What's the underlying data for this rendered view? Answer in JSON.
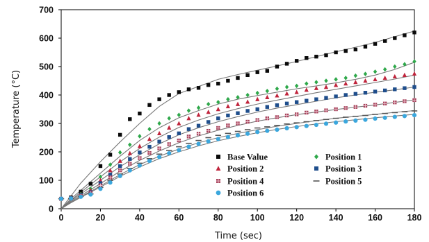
{
  "chart_data": {
    "type": "scatter",
    "title": "",
    "xlabel": "Time (sec)",
    "ylabel": "Temperature (°C)",
    "xlim": [
      0,
      180
    ],
    "ylim": [
      0,
      700
    ],
    "x_ticks": [
      "0",
      "20",
      "40",
      "60",
      "80",
      "100",
      "120",
      "140",
      "160",
      "180"
    ],
    "y_ticks": [
      "0",
      "100",
      "200",
      "300",
      "400",
      "500",
      "600",
      "700"
    ],
    "grid": false,
    "legend": "inside-bottom-center, two columns",
    "series": [
      {
        "name": "Base Value",
        "marker": "square",
        "color": "#0a0a0a",
        "x": [
          0,
          5,
          10,
          15,
          20,
          25,
          30,
          35,
          40,
          45,
          50,
          55,
          60,
          65,
          70,
          75,
          80,
          85,
          90,
          95,
          100,
          105,
          110,
          115,
          120,
          125,
          130,
          135,
          140,
          145,
          150,
          155,
          160,
          165,
          170,
          175,
          180
        ],
        "y": [
          35,
          40,
          60,
          88,
          150,
          190,
          260,
          315,
          335,
          365,
          385,
          400,
          410,
          420,
          425,
          435,
          440,
          450,
          460,
          470,
          480,
          485,
          500,
          510,
          520,
          530,
          535,
          540,
          550,
          555,
          560,
          570,
          580,
          590,
          600,
          610,
          620
        ]
      },
      {
        "name": "Position 1",
        "marker": "diamond",
        "color": "#2ea84a",
        "x": [
          0,
          5,
          10,
          15,
          20,
          25,
          30,
          35,
          40,
          45,
          50,
          55,
          60,
          65,
          70,
          75,
          80,
          85,
          90,
          95,
          100,
          105,
          110,
          115,
          120,
          125,
          130,
          135,
          140,
          145,
          150,
          155,
          160,
          165,
          170,
          175,
          180
        ],
        "y": [
          35,
          38,
          52,
          70,
          112,
          155,
          198,
          225,
          255,
          280,
          300,
          318,
          330,
          345,
          355,
          368,
          375,
          385,
          392,
          400,
          407,
          414,
          422,
          428,
          432,
          440,
          445,
          450,
          455,
          460,
          468,
          474,
          482,
          490,
          500,
          508,
          518
        ]
      },
      {
        "name": "Position 2",
        "marker": "triangle",
        "color": "#c0243c",
        "x": [
          0,
          5,
          10,
          15,
          20,
          25,
          30,
          35,
          40,
          45,
          50,
          55,
          60,
          65,
          70,
          75,
          80,
          85,
          90,
          95,
          100,
          105,
          110,
          115,
          120,
          125,
          130,
          135,
          140,
          145,
          150,
          155,
          160,
          165,
          170,
          175,
          180
        ],
        "y": [
          35,
          38,
          50,
          65,
          100,
          135,
          168,
          195,
          220,
          245,
          265,
          285,
          300,
          318,
          330,
          340,
          350,
          360,
          368,
          376,
          385,
          392,
          398,
          405,
          410,
          418,
          424,
          428,
          435,
          440,
          445,
          450,
          455,
          460,
          465,
          470,
          475
        ]
      },
      {
        "name": "Position 3",
        "marker": "square",
        "color": "#1f4e8c",
        "x": [
          0,
          5,
          10,
          15,
          20,
          25,
          30,
          35,
          40,
          45,
          50,
          55,
          60,
          65,
          70,
          75,
          80,
          85,
          90,
          95,
          100,
          105,
          110,
          115,
          120,
          125,
          130,
          135,
          140,
          145,
          150,
          155,
          160,
          165,
          170,
          175,
          180
        ],
        "y": [
          35,
          37,
          48,
          58,
          90,
          120,
          150,
          175,
          198,
          218,
          236,
          252,
          265,
          280,
          292,
          305,
          318,
          328,
          336,
          344,
          350,
          358,
          364,
          370,
          375,
          380,
          385,
          390,
          395,
          400,
          404,
          408,
          412,
          416,
          420,
          424,
          428
        ]
      },
      {
        "name": "Position 4",
        "marker": "square-cross",
        "color": "#a8455e",
        "x": [
          0,
          5,
          10,
          15,
          20,
          25,
          30,
          35,
          40,
          45,
          50,
          55,
          60,
          65,
          70,
          75,
          80,
          85,
          90,
          95,
          100,
          105,
          110,
          115,
          120,
          125,
          130,
          135,
          140,
          145,
          150,
          155,
          160,
          165,
          170,
          175,
          180
        ],
        "y": [
          35,
          36,
          45,
          55,
          82,
          110,
          135,
          158,
          178,
          196,
          212,
          227,
          240,
          254,
          264,
          274,
          284,
          293,
          300,
          306,
          312,
          318,
          322,
          328,
          332,
          338,
          342,
          346,
          350,
          354,
          358,
          362,
          366,
          370,
          374,
          378,
          382
        ]
      },
      {
        "name": "Position 5",
        "marker": "dash",
        "color": "#555555",
        "x": [
          0,
          5,
          10,
          15,
          20,
          25,
          30,
          35,
          40,
          45,
          50,
          55,
          60,
          65,
          70,
          75,
          80,
          85,
          90,
          95,
          100,
          105,
          110,
          115,
          120,
          125,
          130,
          135,
          140,
          145,
          150,
          155,
          160,
          165,
          170,
          175,
          180
        ],
        "y": [
          35,
          36,
          43,
          52,
          75,
          100,
          122,
          142,
          160,
          176,
          192,
          205,
          218,
          230,
          240,
          250,
          258,
          265,
          272,
          278,
          284,
          288,
          293,
          298,
          302,
          306,
          310,
          314,
          318,
          322,
          325,
          328,
          332,
          335,
          338,
          341,
          344
        ]
      },
      {
        "name": "Position 6",
        "marker": "circle",
        "color": "#3ba7dd",
        "x": [
          0,
          5,
          10,
          15,
          20,
          25,
          30,
          35,
          40,
          45,
          50,
          55,
          60,
          65,
          70,
          75,
          80,
          85,
          90,
          95,
          100,
          105,
          110,
          115,
          120,
          125,
          130,
          135,
          140,
          145,
          150,
          155,
          160,
          165,
          170,
          175,
          180
        ],
        "y": [
          35,
          36,
          42,
          50,
          70,
          92,
          115,
          135,
          152,
          168,
          182,
          195,
          206,
          218,
          228,
          237,
          245,
          252,
          258,
          264,
          270,
          274,
          278,
          283,
          287,
          291,
          295,
          299,
          303,
          307,
          310,
          313,
          317,
          320,
          323,
          326,
          329
        ]
      }
    ],
    "fit_curves": [
      {
        "x": [
          0,
          5,
          10,
          20,
          30,
          40,
          50,
          60,
          70,
          80,
          90,
          100,
          110,
          120,
          130,
          140,
          150,
          160,
          170,
          180
        ],
        "y": [
          0,
          45,
          90,
          165,
          235,
          300,
          360,
          405,
          430,
          455,
          472,
          487,
          502,
          518,
          535,
          552,
          568,
          585,
          605,
          625
        ]
      },
      {
        "x": [
          0,
          5,
          10,
          20,
          30,
          40,
          50,
          60,
          70,
          80,
          90,
          100,
          110,
          120,
          130,
          140,
          150,
          160,
          170,
          180
        ],
        "y": [
          0,
          35,
          65,
          125,
          185,
          240,
          285,
          320,
          345,
          368,
          385,
          398,
          410,
          422,
          432,
          443,
          455,
          470,
          490,
          515
        ]
      },
      {
        "x": [
          0,
          5,
          10,
          20,
          30,
          40,
          50,
          60,
          70,
          80,
          90,
          100,
          110,
          120,
          130,
          140,
          150,
          160,
          170,
          180
        ],
        "y": [
          0,
          30,
          58,
          112,
          165,
          212,
          252,
          286,
          312,
          334,
          352,
          368,
          382,
          395,
          408,
          420,
          432,
          444,
          456,
          470
        ]
      },
      {
        "x": [
          0,
          5,
          10,
          20,
          30,
          40,
          50,
          60,
          70,
          80,
          90,
          100,
          110,
          120,
          130,
          140,
          150,
          160,
          170,
          180
        ],
        "y": [
          0,
          28,
          52,
          100,
          148,
          190,
          228,
          260,
          285,
          306,
          324,
          340,
          354,
          366,
          378,
          390,
          400,
          410,
          418,
          428
        ]
      },
      {
        "x": [
          0,
          5,
          10,
          20,
          30,
          40,
          50,
          60,
          70,
          80,
          90,
          100,
          110,
          120,
          130,
          140,
          150,
          160,
          170,
          180
        ],
        "y": [
          0,
          25,
          46,
          88,
          132,
          170,
          203,
          232,
          256,
          276,
          293,
          308,
          320,
          331,
          340,
          349,
          357,
          365,
          374,
          383
        ]
      },
      {
        "x": [
          0,
          5,
          10,
          20,
          30,
          40,
          50,
          60,
          70,
          80,
          90,
          100,
          110,
          120,
          130,
          140,
          150,
          160,
          170,
          180
        ],
        "y": [
          0,
          22,
          42,
          80,
          120,
          155,
          185,
          210,
          232,
          250,
          265,
          278,
          290,
          300,
          310,
          318,
          325,
          332,
          339,
          345
        ]
      },
      {
        "x": [
          0,
          5,
          10,
          20,
          30,
          40,
          50,
          60,
          70,
          80,
          90,
          100,
          110,
          120,
          130,
          140,
          150,
          160,
          170,
          180
        ],
        "y": [
          0,
          21,
          40,
          76,
          114,
          147,
          176,
          200,
          221,
          239,
          254,
          267,
          279,
          289,
          298,
          306,
          313,
          320,
          326,
          332
        ]
      }
    ]
  }
}
